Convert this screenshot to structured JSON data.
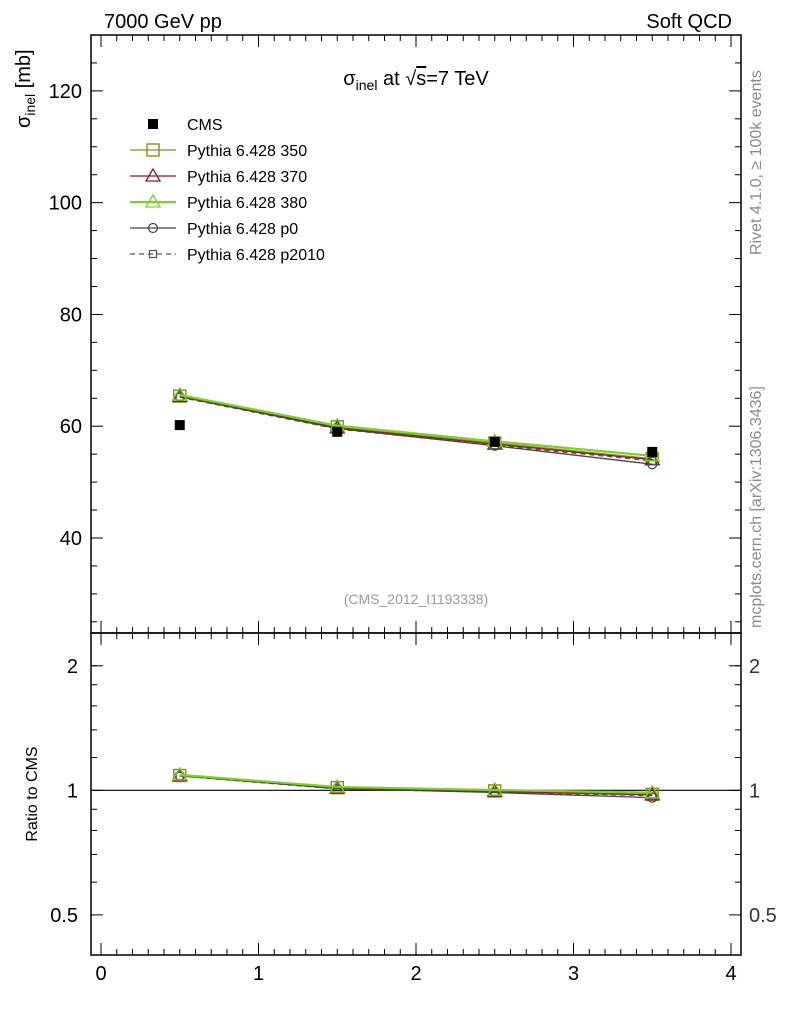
{
  "header": {
    "left_label": "7000 GeV pp",
    "right_label": "Soft QCD"
  },
  "side_labels": {
    "rivet": "Rivet 4.1.0, ≥ 100k events",
    "mcplots": "mcplots.cern.ch [arXiv:1306.3436]"
  },
  "chart_data": {
    "type": "line",
    "title_parts": {
      "sigma": "σ",
      "sub": "inel",
      "mid": " at ",
      "sqrt": "√",
      "s": "s",
      "tail": "=7 TeV"
    },
    "analysis_id": "(CMS_2012_I1193338)",
    "x": [
      0.5,
      1.5,
      2.5,
      3.5
    ],
    "xlim": [
      0,
      4
    ],
    "x_ticks": [
      "0",
      "1",
      "2",
      "3",
      "4"
    ],
    "main": {
      "ylabel_sigma": "σ",
      "ylabel_sub": "inel",
      "ylabel_unit": " [mb]",
      "ylim": [
        23,
        130
      ],
      "y_ticks": [
        "40",
        "60",
        "80",
        "100",
        "120"
      ],
      "y_tick_values": [
        40,
        60,
        80,
        100,
        120
      ]
    },
    "ratio": {
      "ylabel": "Ratio to CMS",
      "ylim": [
        0.4,
        2.4
      ],
      "y_ticks": [
        "0.5",
        "1",
        "2"
      ],
      "y_tick_values": [
        0.5,
        1,
        2
      ]
    },
    "legend": [
      "CMS",
      "Pythia 6.428 350",
      "Pythia 6.428 370",
      "Pythia 6.428 380",
      "Pythia 6.428 p0",
      "Pythia 6.428 p2010"
    ],
    "series": [
      {
        "name": "CMS",
        "marker": "filled-square",
        "color": "#000000",
        "values": [
          60.2,
          59.0,
          57.2,
          55.4
        ]
      },
      {
        "name": "Pythia 6.428 350",
        "marker": "open-square",
        "color": "#8c8c1e",
        "values": [
          65.4,
          59.9,
          57.0,
          54.2
        ]
      },
      {
        "name": "Pythia 6.428 370",
        "marker": "open-triangle",
        "color": "#8b1a2b",
        "values": [
          65.3,
          59.7,
          56.8,
          54.0
        ]
      },
      {
        "name": "Pythia 6.428 380",
        "marker": "open-triangle",
        "color": "#7ed321",
        "values": [
          65.6,
          60.1,
          57.3,
          54.7
        ]
      },
      {
        "name": "Pythia 6.428 p0",
        "marker": "open-circle",
        "color": "#444444",
        "values": [
          65.3,
          59.6,
          56.5,
          53.2
        ]
      },
      {
        "name": "Pythia 6.428 p2010",
        "marker": "small-open-square",
        "color": "#555555",
        "dashed": true,
        "values": [
          65.2,
          59.5,
          56.6,
          53.8
        ]
      }
    ],
    "ratio_series": [
      {
        "name": "Pythia 6.428 350",
        "values": [
          1.086,
          1.015,
          0.997,
          0.978
        ]
      },
      {
        "name": "Pythia 6.428 370",
        "values": [
          1.085,
          1.012,
          0.993,
          0.975
        ]
      },
      {
        "name": "Pythia 6.428 380",
        "values": [
          1.09,
          1.019,
          1.002,
          0.987
        ]
      },
      {
        "name": "Pythia 6.428 p0",
        "values": [
          1.085,
          1.01,
          0.988,
          0.96
        ]
      },
      {
        "name": "Pythia 6.428 p2010",
        "values": [
          1.083,
          1.008,
          0.99,
          0.971
        ]
      }
    ]
  }
}
